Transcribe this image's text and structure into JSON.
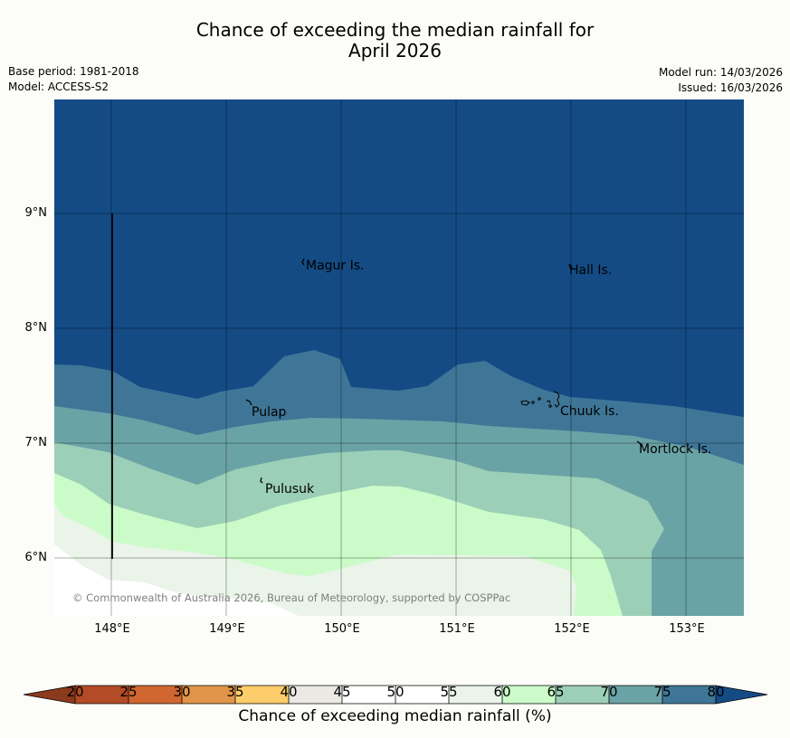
{
  "title_line1": "Chance of exceeding the median rainfall for",
  "title_line2": "April 2026",
  "meta": {
    "base_period": "Base period: 1981-2018",
    "model": "Model: ACCESS-S2",
    "model_run": "Model run: 14/03/2026",
    "issued": "Issued: 16/03/2026"
  },
  "map": {
    "lat_labels": [
      "9°N",
      "8°N",
      "7°N",
      "6°N"
    ],
    "lon_labels": [
      "148°E",
      "149°E",
      "150°E",
      "151°E",
      "152°E",
      "153°E"
    ],
    "places": {
      "magur": "Magur Is.",
      "hall": "Hall Is.",
      "pulap": "Pulap",
      "chuuk": "Chuuk Is.",
      "mortlock": "Mortlock Is.",
      "pulusuk": "Pulusuk"
    },
    "copyright": "© Commonwealth of Australia 2026, Bureau of Meteorology, supported by COSPPac"
  },
  "colorbar": {
    "title": "Chance of exceeding median rainfall (%)",
    "ticks": [
      "20",
      "25",
      "30",
      "35",
      "40",
      "45",
      "50",
      "55",
      "60",
      "65",
      "70",
      "75",
      "80"
    ],
    "colors": {
      "below20": "#8c3a1e",
      "c20_25": "#b34c26",
      "c25_30": "#d06730",
      "c30_35": "#e1954b",
      "c35_40": "#fdcd6b",
      "c40_45": "#ebe9e4",
      "c45_50": "#ffffff",
      "c50_55": "#ffffff",
      "c55_60": "#eaf4e9",
      "c60_65": "#cbfbc9",
      "c65_70": "#9ccfb7",
      "c70_75": "#6aa3a6",
      "c75_80": "#3f7697",
      "above80": "#144b85"
    }
  }
}
